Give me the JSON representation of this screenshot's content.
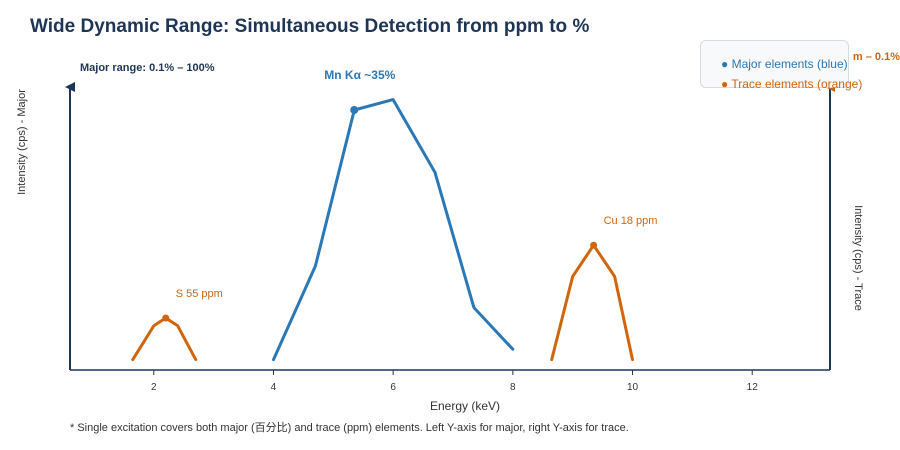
{
  "title": "Wide Dynamic Range: Simultaneous Detection from ppm to %",
  "legend": {
    "major": "Major elements (blue)",
    "trace": "Trace elements (orange)"
  },
  "footnote": "* Single excitation covers both major (百分比) and trace (ppm) elements. Left Y-axis for major, right Y-axis for trace.",
  "colors": {
    "major": "#2b78b6",
    "trace": "#d1650e",
    "axis": "#1f3556"
  },
  "chart_data": {
    "type": "line",
    "title": "Wide Dynamic Range: Simultaneous Detection from ppm to %",
    "xlabel": "Energy (keV)",
    "ylabel_left": "Intensity (cps) - Major",
    "ylabel_right": "Intensity (cps) - Trace",
    "xlim": [
      0.6,
      13.3
    ],
    "x_ticks": [
      2,
      4,
      6,
      8,
      10,
      12
    ],
    "ylim": [
      0,
      100
    ],
    "grid": false,
    "legend_position": "top-right",
    "range_labels": {
      "major": "Major range: 0.1% – 100%",
      "trace": "m – 0.1%"
    },
    "series": [
      {
        "name": "Major elements (blue)",
        "axis": "left",
        "color": "#2b78b6",
        "x": [
          4.0,
          4.7,
          5.35,
          6.0,
          6.7,
          7.35,
          8.0
        ],
        "y": [
          4,
          40,
          100,
          104,
          76,
          24,
          8
        ]
      },
      {
        "name": "Trace elements (orange)",
        "axis": "right",
        "color": "#d1650e",
        "segments": [
          {
            "x": [
              1.65,
              2.0,
              2.2,
              2.4,
              2.7
            ],
            "y": [
              4,
              17,
              20,
              17,
              4
            ]
          },
          {
            "x": [
              8.65,
              9.0,
              9.35,
              9.7,
              10.0
            ],
            "y": [
              4,
              36,
              48,
              36,
              4
            ]
          }
        ]
      }
    ],
    "annotations": [
      {
        "text": "Mn Kα ~35%",
        "x": 5.35,
        "y": 100,
        "series": "major"
      },
      {
        "text": "S 55 ppm",
        "x": 2.2,
        "y": 20,
        "series": "trace"
      },
      {
        "text": "Cu 18 ppm",
        "x": 9.35,
        "y": 48,
        "series": "trace"
      }
    ]
  }
}
